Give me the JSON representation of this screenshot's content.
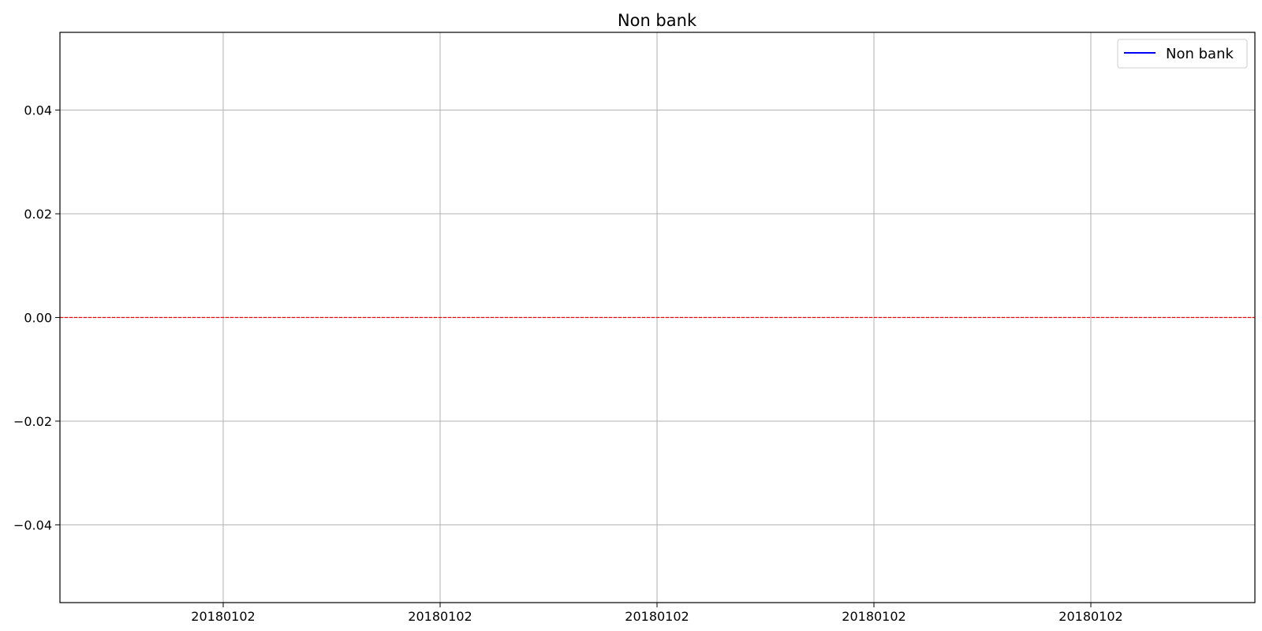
{
  "chart_data": {
    "type": "line",
    "title": "Non bank",
    "xlabel": "",
    "ylabel": "",
    "x_tick_labels": [
      "20180102",
      "20180102",
      "20180102",
      "20180102",
      "20180102"
    ],
    "y_ticks": [
      0.04,
      0.02,
      0.0,
      -0.02,
      -0.04
    ],
    "y_tick_labels": [
      "0.04",
      "0.02",
      "0.00",
      "−0.02",
      "−0.04"
    ],
    "ylim": [
      -0.055,
      0.055
    ],
    "series": [
      {
        "name": "Non bank",
        "color": "#0000ff",
        "x": [],
        "y": []
      }
    ],
    "reference_line": {
      "y": 0.0,
      "color": "#ff0000",
      "style": "dashed"
    },
    "grid": true,
    "legend": {
      "position": "top-right"
    }
  }
}
